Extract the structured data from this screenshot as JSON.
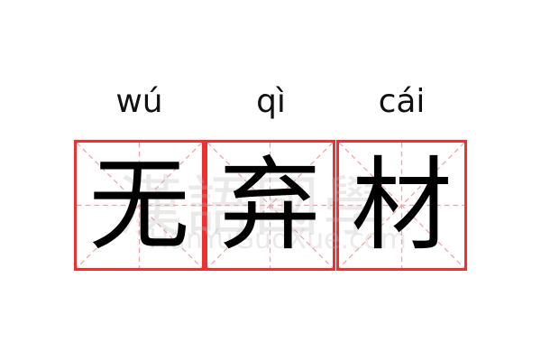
{
  "entries": [
    {
      "pinyin": "wú",
      "char": "无"
    },
    {
      "pinyin": "qì",
      "char": "弃"
    },
    {
      "pinyin": "cái",
      "char": "材"
    }
  ],
  "watermark": {
    "cn": "漢語國學",
    "en": "HanYuGuoXue.com"
  },
  "colors": {
    "border": "#f03030",
    "guide": "#f6a0a0"
  }
}
